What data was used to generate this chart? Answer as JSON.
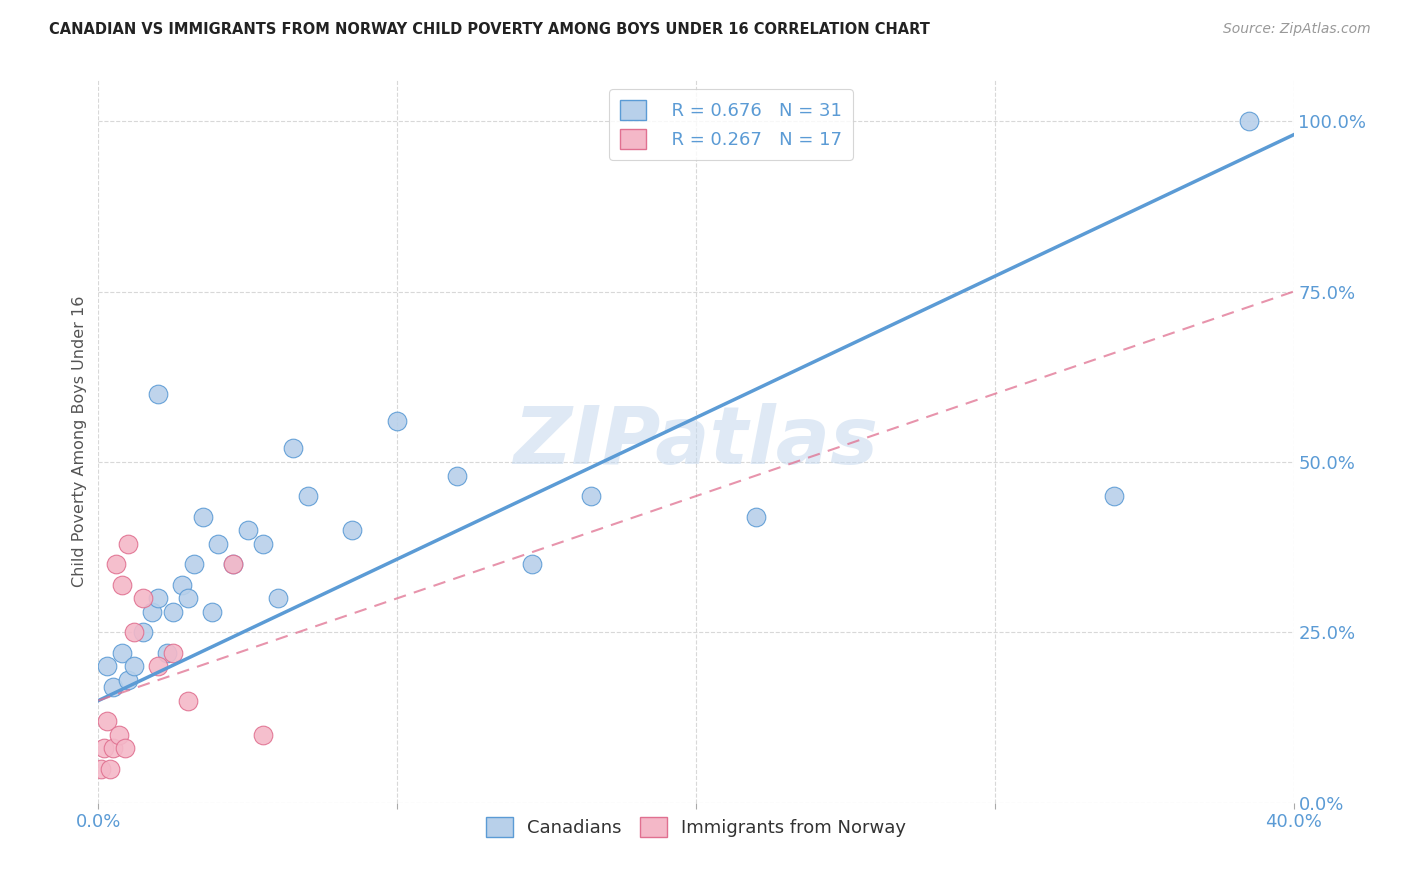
{
  "title": "CANADIAN VS IMMIGRANTS FROM NORWAY CHILD POVERTY AMONG BOYS UNDER 16 CORRELATION CHART",
  "source": "Source: ZipAtlas.com",
  "ylabel": "Child Poverty Among Boys Under 16",
  "ytick_labels": [
    "0.0%",
    "25.0%",
    "50.0%",
    "75.0%",
    "100.0%"
  ],
  "ytick_values": [
    0,
    25,
    50,
    75,
    100
  ],
  "watermark": "ZIPatlas",
  "legend_r1": "R = 0.676",
  "legend_n1": "N = 31",
  "legend_r2": "R = 0.267",
  "legend_n2": "N = 17",
  "blue_fill": "#b8d0ea",
  "blue_edge": "#5b9bd5",
  "pink_fill": "#f4b8c8",
  "pink_edge": "#e07090",
  "blue_line": "#5b9bd5",
  "pink_line": "#e07090",
  "canadians_x": [
    0.3,
    0.5,
    0.8,
    1.0,
    1.2,
    1.5,
    1.8,
    2.0,
    2.3,
    2.5,
    2.8,
    3.0,
    3.2,
    3.5,
    4.0,
    4.5,
    5.0,
    5.5,
    6.0,
    7.0,
    8.5,
    10.0,
    12.0,
    14.5,
    16.5,
    34.0,
    38.5,
    2.0,
    3.8,
    6.5,
    22.0
  ],
  "canadians_y": [
    20,
    17,
    22,
    18,
    20,
    25,
    28,
    30,
    22,
    28,
    32,
    30,
    35,
    42,
    38,
    35,
    40,
    38,
    30,
    45,
    40,
    56,
    48,
    35,
    45,
    45,
    100,
    60,
    28,
    52,
    42
  ],
  "norway_x": [
    0.1,
    0.2,
    0.3,
    0.4,
    0.5,
    0.6,
    0.8,
    1.0,
    1.2,
    1.5,
    2.0,
    3.0,
    4.5,
    5.5,
    2.5,
    0.7,
    0.9
  ],
  "norway_y": [
    5,
    8,
    12,
    5,
    8,
    35,
    32,
    38,
    25,
    30,
    20,
    15,
    35,
    10,
    22,
    10,
    8
  ],
  "blue_trendline": [
    15.0,
    98.0
  ],
  "pink_trendline_x": [
    0.0,
    40.0
  ],
  "pink_trendline_y": [
    15.0,
    75.0
  ],
  "xmin": 0,
  "xmax": 40,
  "ymin": 0,
  "ymax": 106,
  "xticks": [
    0,
    10,
    20,
    30,
    40
  ],
  "xtick_labels_show": [
    "0.0%",
    "",
    "",
    "",
    "40.0%"
  ],
  "grid_color": "#d8d8d8",
  "tick_color": "#5b9bd5",
  "title_color": "#222222",
  "source_color": "#999999",
  "ylabel_color": "#555555",
  "watermark_color": "#c5d8ee",
  "watermark_alpha": 0.55,
  "bottom_legend_labels": [
    "Canadians",
    "Immigrants from Norway"
  ]
}
